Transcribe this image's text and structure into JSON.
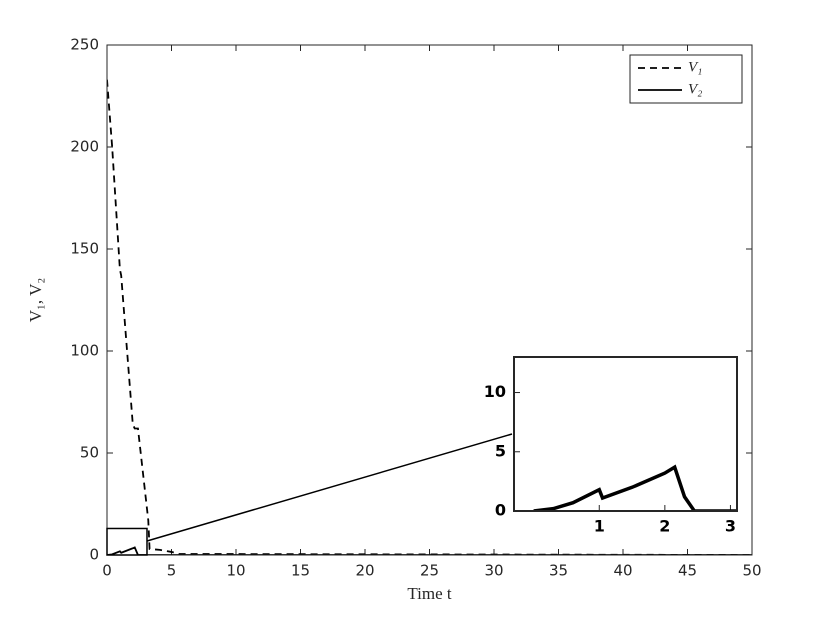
{
  "chart_data": [
    {
      "type": "line",
      "xlabel": "Time t",
      "ylabel": "V₁, V₂",
      "x": [
        0,
        0.4,
        1,
        1.1,
        2,
        2.15,
        2.4,
        3.2,
        3.3,
        4.1,
        5,
        5.6,
        50
      ],
      "series": [
        {
          "name": "V₁",
          "color": "#000000",
          "dash": true,
          "values": [
            233,
            200,
            140,
            137,
            64,
            62,
            62,
            17,
            3,
            2.5,
            1.5,
            0.5,
            0
          ]
        },
        {
          "name": "V₂",
          "color": "#000000",
          "dash": false,
          "values": [
            0,
            0.3,
            1.8,
            1.1,
            3.3,
            3.7,
            0,
            0,
            0,
            0,
            0,
            0,
            0
          ]
        }
      ],
      "xlim": [
        0,
        50
      ],
      "xticks": [
        0,
        5,
        10,
        15,
        20,
        25,
        30,
        35,
        40,
        45,
        50
      ],
      "ylim": [
        0,
        250
      ],
      "yticks": [
        0,
        50,
        100,
        150,
        200,
        250
      ],
      "legend": "northeast"
    },
    {
      "type": "line",
      "x": [
        0,
        0.3,
        0.6,
        1,
        1.05,
        1.5,
        2,
        2.15,
        2.3,
        2.45,
        3.1
      ],
      "series": [
        {
          "color": "#000000",
          "values": [
            0,
            0.2,
            0.7,
            1.8,
            1.1,
            2,
            3.2,
            3.7,
            1.2,
            0,
            0
          ]
        }
      ],
      "xlim": [
        -0.3,
        3.1
      ],
      "xticks": [
        1,
        2,
        3
      ],
      "ylim": [
        0,
        13
      ],
      "yticks": [
        0,
        5,
        10
      ]
    }
  ]
}
